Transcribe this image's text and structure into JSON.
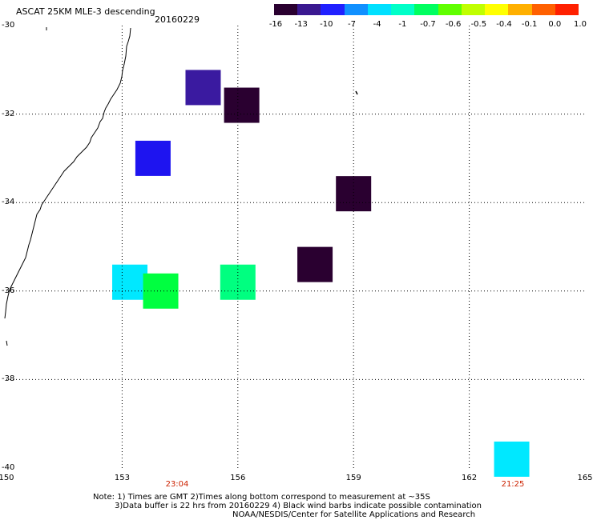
{
  "header": {
    "title": "ASCAT 25KM MLE-3 descending",
    "date": "20160229"
  },
  "colorbar": {
    "labels": [
      "-16",
      "-13",
      "-10",
      "-7",
      "-4",
      "-1",
      "-0.7",
      "-0.6",
      "-0.5",
      "-0.4",
      "-0.1",
      "0.0",
      "1.0"
    ],
    "colors": [
      "#2a0030",
      "#3a1890",
      "#2020ff",
      "#1090ff",
      "#00e0ff",
      "#00ffc8",
      "#00ff60",
      "#60ff00",
      "#c0ff00",
      "#ffff00",
      "#ffb000",
      "#ff6000",
      "#ff2000"
    ]
  },
  "axes": {
    "lat_labels": [
      "-30",
      "-32",
      "-34",
      "-36",
      "-38",
      "-40"
    ],
    "lon_labels": [
      "150",
      "153",
      "156",
      "159",
      "162",
      "165"
    ],
    "lon_range": [
      150,
      165
    ],
    "lat_range": [
      -40,
      -30
    ]
  },
  "times": {
    "left": "23:04",
    "right": "21:25"
  },
  "notes": {
    "line1": "Note: 1) Times are GMT 2)Times along bottom correspond to measurement at ~35S",
    "line2": "3)Data buffer is 22 hrs from 20160229 4) Black wind barbs indicate possible contamination",
    "line3": "NOAA/NESDIS/Center for Satellite Applications and Research"
  },
  "map_data": {
    "cells": [
      {
        "lon": 155.1,
        "lat": -31.4,
        "color": "#3a1aa0",
        "label": "-13"
      },
      {
        "lon": 156.1,
        "lat": -31.8,
        "color": "#2a0030",
        "label": "-16"
      },
      {
        "lon": 153.8,
        "lat": -33.0,
        "color": "#1e14f0",
        "label": "-10"
      },
      {
        "lon": 159.0,
        "lat": -33.8,
        "color": "#2a0030",
        "label": "-16"
      },
      {
        "lon": 158.0,
        "lat": -35.4,
        "color": "#2a0030",
        "label": "-16"
      },
      {
        "lon": 153.2,
        "lat": -35.8,
        "color": "#00e8ff",
        "label": "-4"
      },
      {
        "lon": 154.0,
        "lat": -36.0,
        "color": "#00ff40",
        "label": "-0.6"
      },
      {
        "lon": 156.0,
        "lat": -35.8,
        "color": "#00ff80",
        "label": "-0.7"
      },
      {
        "lon": 163.1,
        "lat": -39.8,
        "color": "#00e8ff",
        "label": "-4"
      }
    ]
  }
}
